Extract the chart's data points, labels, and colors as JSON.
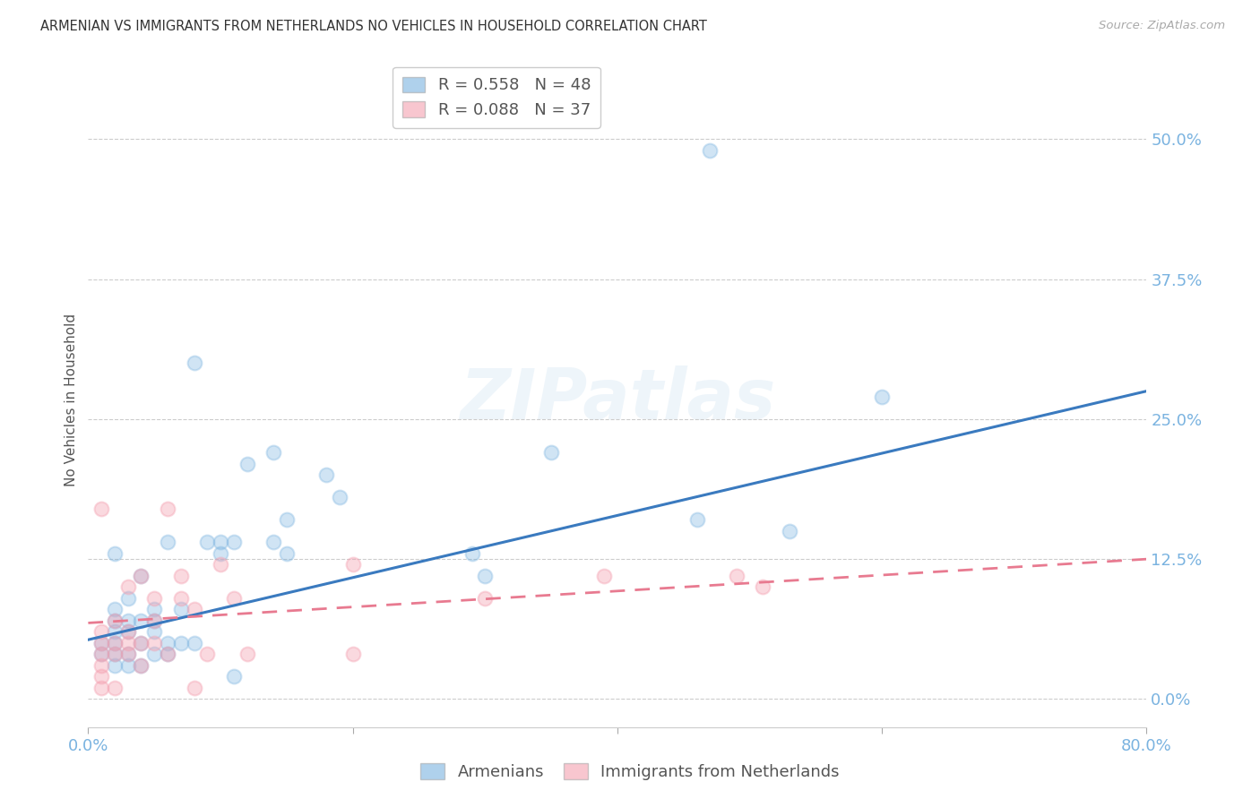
{
  "title": "ARMENIAN VS IMMIGRANTS FROM NETHERLANDS NO VEHICLES IN HOUSEHOLD CORRELATION CHART",
  "source": "Source: ZipAtlas.com",
  "ylabel": "No Vehicles in Household",
  "xlim": [
    0.0,
    0.8
  ],
  "ylim": [
    -0.025,
    0.56
  ],
  "yticks": [
    0.0,
    0.125,
    0.25,
    0.375,
    0.5
  ],
  "ytick_labels": [
    "0.0%",
    "12.5%",
    "25.0%",
    "37.5%",
    "50.0%"
  ],
  "xticks": [
    0.0,
    0.2,
    0.4,
    0.6,
    0.8
  ],
  "xtick_labels": [
    "0.0%",
    "",
    "",
    "",
    "80.0%"
  ],
  "armenian_R": 0.558,
  "armenian_N": 48,
  "netherlands_R": 0.088,
  "netherlands_N": 37,
  "armenian_color": "#7ab3e0",
  "netherlands_color": "#f4a0b0",
  "armenian_line_color": "#3a7abf",
  "netherlands_line_color": "#e87a90",
  "background_color": "#ffffff",
  "watermark_text": "ZIPatlas",
  "legend_label_armenian": "Armenians",
  "legend_label_netherlands": "Immigrants from Netherlands",
  "arm_line_x0": 0.0,
  "arm_line_y0": 0.053,
  "arm_line_x1": 0.8,
  "arm_line_y1": 0.275,
  "neth_line_x0": 0.0,
  "neth_line_y0": 0.068,
  "neth_line_x1": 0.8,
  "neth_line_y1": 0.125,
  "armenian_x": [
    0.01,
    0.01,
    0.02,
    0.02,
    0.02,
    0.02,
    0.02,
    0.02,
    0.02,
    0.03,
    0.03,
    0.03,
    0.03,
    0.03,
    0.04,
    0.04,
    0.04,
    0.04,
    0.05,
    0.05,
    0.05,
    0.05,
    0.06,
    0.06,
    0.06,
    0.07,
    0.07,
    0.08,
    0.08,
    0.09,
    0.1,
    0.1,
    0.11,
    0.11,
    0.12,
    0.14,
    0.14,
    0.15,
    0.15,
    0.18,
    0.19,
    0.29,
    0.3,
    0.35,
    0.46,
    0.47,
    0.53,
    0.6
  ],
  "armenian_y": [
    0.04,
    0.05,
    0.03,
    0.04,
    0.05,
    0.06,
    0.07,
    0.08,
    0.13,
    0.03,
    0.04,
    0.06,
    0.07,
    0.09,
    0.03,
    0.05,
    0.07,
    0.11,
    0.04,
    0.06,
    0.07,
    0.08,
    0.04,
    0.05,
    0.14,
    0.05,
    0.08,
    0.05,
    0.3,
    0.14,
    0.13,
    0.14,
    0.02,
    0.14,
    0.21,
    0.14,
    0.22,
    0.13,
    0.16,
    0.2,
    0.18,
    0.13,
    0.11,
    0.22,
    0.16,
    0.49,
    0.15,
    0.27
  ],
  "netherlands_x": [
    0.01,
    0.01,
    0.01,
    0.01,
    0.01,
    0.01,
    0.01,
    0.02,
    0.02,
    0.02,
    0.02,
    0.03,
    0.03,
    0.03,
    0.03,
    0.04,
    0.04,
    0.04,
    0.05,
    0.05,
    0.05,
    0.06,
    0.06,
    0.07,
    0.07,
    0.08,
    0.08,
    0.09,
    0.1,
    0.11,
    0.12,
    0.2,
    0.2,
    0.3,
    0.39,
    0.49,
    0.51
  ],
  "netherlands_y": [
    0.01,
    0.02,
    0.03,
    0.04,
    0.05,
    0.06,
    0.17,
    0.01,
    0.04,
    0.05,
    0.07,
    0.04,
    0.05,
    0.06,
    0.1,
    0.03,
    0.05,
    0.11,
    0.05,
    0.07,
    0.09,
    0.04,
    0.17,
    0.09,
    0.11,
    0.01,
    0.08,
    0.04,
    0.12,
    0.09,
    0.04,
    0.12,
    0.04,
    0.09,
    0.11,
    0.11,
    0.1
  ]
}
